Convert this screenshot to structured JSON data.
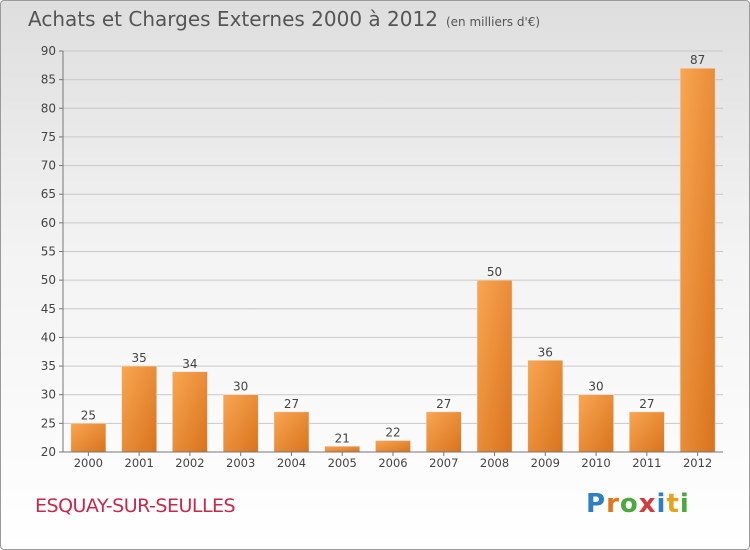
{
  "header": {
    "title": "Achats et Charges Externes 2000 à 2012",
    "unit": "(en milliers d'€)"
  },
  "footer": {
    "city": "ESQUAY-SUR-SEULLES",
    "logo_letters": [
      "P",
      "r",
      "o",
      "x",
      "i",
      "t",
      "i"
    ],
    "logo_colors": [
      "#2f7fc6",
      "#e2761b",
      "#4aa83c",
      "#d23c3c",
      "#2f7fc6",
      "#e2a51b",
      "#4aa83c"
    ]
  },
  "colors": {
    "bar_light": "#f9a653",
    "bar_dark": "#d9731c",
    "grid": "#c8c8c8",
    "axis_text": "#444444"
  },
  "chart_data": {
    "type": "bar",
    "title": "Achats et Charges Externes 2000 à 2012",
    "subtitle": "(en milliers d'€)",
    "categories": [
      "2000",
      "2001",
      "2002",
      "2003",
      "2004",
      "2005",
      "2006",
      "2007",
      "2008",
      "2009",
      "2010",
      "2011",
      "2012"
    ],
    "values": [
      25,
      35,
      34,
      30,
      27,
      21,
      22,
      27,
      50,
      36,
      30,
      27,
      87
    ],
    "ylim": [
      20,
      90
    ],
    "yticks": [
      20,
      25,
      30,
      35,
      40,
      45,
      50,
      55,
      60,
      65,
      70,
      75,
      80,
      85,
      90
    ],
    "grid": true,
    "xlabel": "",
    "ylabel": ""
  }
}
